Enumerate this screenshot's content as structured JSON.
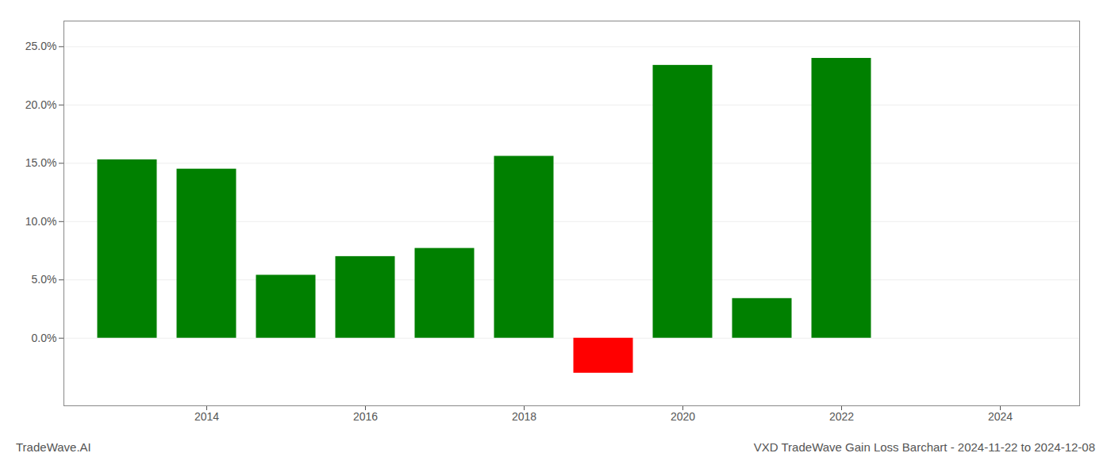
{
  "chart_data": {
    "type": "bar",
    "title": "VXD TradeWave Gain Loss Barchart - 2024-11-22 to 2024-12-08",
    "annotations": [
      "TradeWave.AI"
    ],
    "x": [
      2013,
      2014,
      2015,
      2016,
      2017,
      2018,
      2019,
      2020,
      2021,
      2022,
      2023
    ],
    "values": [
      0.153,
      0.145,
      0.054,
      0.07,
      0.077,
      0.156,
      -0.03,
      0.234,
      0.034,
      0.24,
      0.0
    ],
    "colors": [
      "#008000",
      "#008000",
      "#008000",
      "#008000",
      "#008000",
      "#008000",
      "#ff0000",
      "#008000",
      "#008000",
      "#008000",
      "#008000"
    ],
    "xlim": [
      2012.2,
      2025.0
    ],
    "xticks": [
      2014,
      2016,
      2018,
      2020,
      2022,
      2024
    ],
    "ylim": [
      -0.058,
      0.272
    ],
    "yticks": [
      {
        "value": 0.0,
        "label": "0.0%"
      },
      {
        "value": 0.05,
        "label": "5.0%"
      },
      {
        "value": 0.1,
        "label": "10.0%"
      },
      {
        "value": 0.15,
        "label": "15.0%"
      },
      {
        "value": 0.2,
        "label": "20.0%"
      },
      {
        "value": 0.25,
        "label": "25.0%"
      }
    ],
    "grid": true
  }
}
